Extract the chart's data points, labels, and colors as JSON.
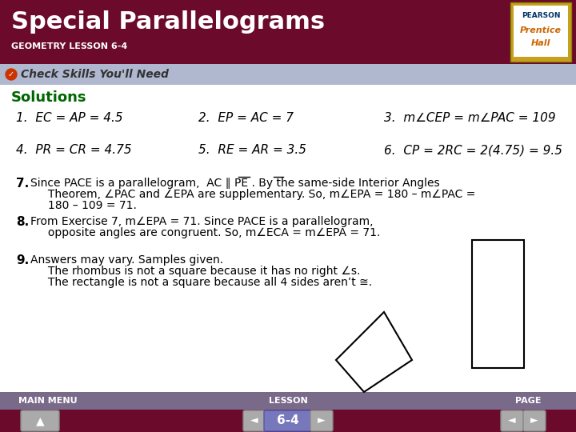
{
  "title": "Special Parallelograms",
  "subtitle": "GEOMETRY LESSON 6-4",
  "header_bg": "#6b0a2a",
  "header_text_color": "#ffffff",
  "subheader_bg": "#b0b8d0",
  "subheader_text": "Check Skills You'll Need",
  "subheader_icon_color": "#cc3300",
  "solutions_color": "#006600",
  "solutions_label": "Solutions",
  "body_bg": "#ffffff",
  "body_text_color": "#000000",
  "footer_bg": "#7a6a8a",
  "footer_bottom_bg": "#6b0a2a",
  "footer_labels": [
    "MAIN MENU",
    "LESSON",
    "PAGE"
  ],
  "page_label": "6-4",
  "lines": [
    {
      "num": "1.",
      "text": "EC = AP = 4.5"
    },
    {
      "num": "2.",
      "text": "EP = AC = 7"
    },
    {
      "num": "3.",
      "text": "m∠CEP = m∠PAC = 109"
    },
    {
      "num": "4.",
      "text": "PR = CR = 4.75"
    },
    {
      "num": "5.",
      "text": "RE = AR = 3.5"
    },
    {
      "num": "6.",
      "text": "CP = 2RC = 2(4.75) = 9.5"
    }
  ],
  "para7_num": "7.",
  "para8_num": "8.",
  "para9_num": "9.",
  "pearson_text1": "PEARSON",
  "pearson_text2": "Prentice",
  "pearson_text3": "Hall"
}
